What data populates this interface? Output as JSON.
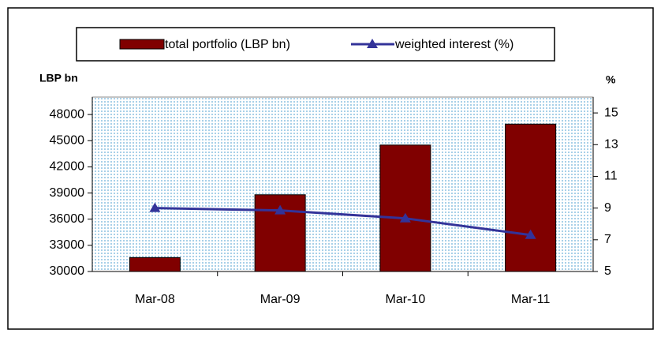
{
  "chart_data": {
    "type": "bar_line",
    "categories": [
      "Mar-08",
      "Mar-09",
      "Mar-10",
      "Mar-11"
    ],
    "series": [
      {
        "name": "total portfolio (LBP bn)",
        "color": "#800000",
        "values": [
          31600,
          38800,
          44500,
          46900
        ]
      },
      {
        "name": "weighted interest (%)",
        "color": "#333399",
        "axis": "y2",
        "values": [
          9.0,
          8.85,
          8.35,
          7.3
        ]
      }
    ],
    "y_label": "LBP bn",
    "y2_label": "%",
    "ylim": [
      30000,
      50000
    ],
    "yticks": [
      30000,
      33000,
      36000,
      39000,
      42000,
      45000,
      48000
    ],
    "y2lim": [
      5,
      16
    ],
    "y2ticks": [
      5,
      7,
      9,
      11,
      13,
      15
    ]
  }
}
